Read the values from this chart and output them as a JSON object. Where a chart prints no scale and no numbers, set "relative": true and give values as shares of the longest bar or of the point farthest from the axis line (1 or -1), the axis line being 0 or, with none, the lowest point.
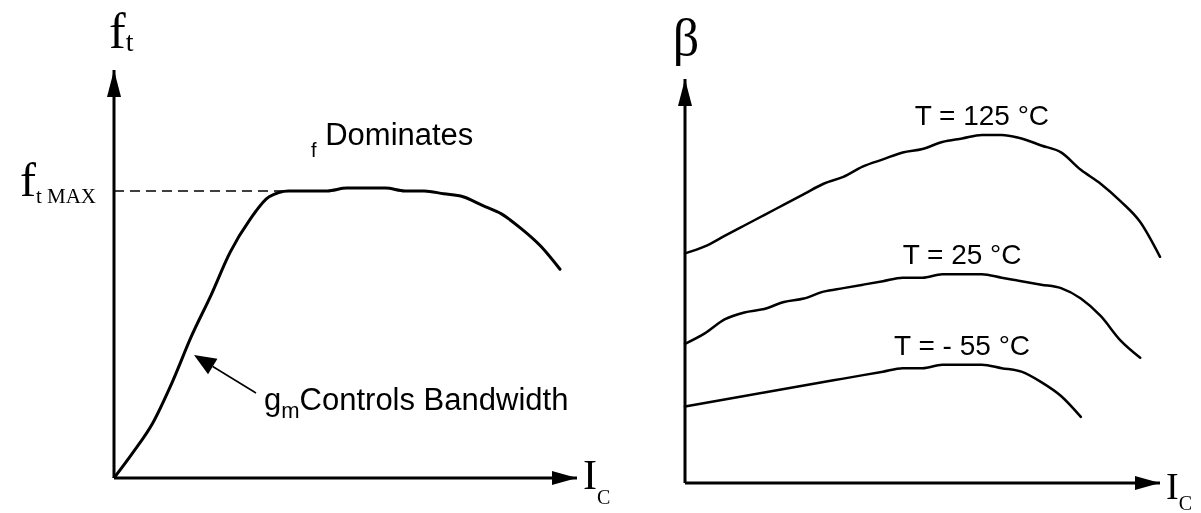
{
  "chart_data": [
    {
      "type": "line",
      "relative": true,
      "ylabel": "f$_{t}$",
      "xlabel": "I$_{C}$",
      "categories": [
        null,
        null,
        null,
        null,
        null,
        null,
        null,
        null,
        null,
        null,
        null,
        null,
        null,
        null,
        null,
        null,
        null,
        null,
        null,
        null,
        null,
        null,
        null,
        null
      ],
      "series": [
        {
          "color": "#000000",
          "values": [
            0,
            0.09,
            0.19,
            0.33,
            0.49,
            0.63,
            0.78,
            0.89,
            0.97,
            0.99,
            0.99,
            0.99,
            1,
            1,
            1,
            0.99,
            0.99,
            0.98,
            0.97,
            0.94,
            0.91,
            0.86,
            0.8,
            0.72
          ]
        }
      ],
      "ref_lines": [
        {
          "axis": "y",
          "value": 0.99,
          "label": "f$_{t MAX}$",
          "line_style": "dashed",
          "color": "#000000"
        }
      ],
      "annotations": [
        "$_{f}$ Dominates",
        "g$_{m}$Controls Bandwidth"
      ]
    },
    {
      "type": "line",
      "relative": true,
      "ylabel": "β",
      "xlabel": "I$_{C}$",
      "categories": [
        null,
        null,
        null,
        null,
        null,
        null,
        null,
        null,
        null,
        null,
        null,
        null,
        null,
        null,
        null,
        null,
        null,
        null,
        null,
        null,
        null,
        null,
        null,
        null,
        null
      ],
      "series": [
        {
          "name": "T = 125 °C",
          "color": "#000000",
          "values": [
            0.66,
            0.68,
            0.71,
            0.74,
            0.77,
            0.8,
            0.83,
            0.86,
            0.88,
            0.91,
            0.93,
            0.95,
            0.96,
            0.98,
            0.99,
            1,
            1,
            0.99,
            0.97,
            0.95,
            0.9,
            0.86,
            0.81,
            0.75,
            0.65
          ]
        },
        {
          "name": "T = 25 °C",
          "color": "#000000",
          "values": [
            0.4,
            0.43,
            0.47,
            0.49,
            0.5,
            0.52,
            0.53,
            0.55,
            0.56,
            0.57,
            0.58,
            0.59,
            0.59,
            0.6,
            0.6,
            0.6,
            0.59,
            0.58,
            0.57,
            0.56,
            0.53,
            0.48,
            0.41,
            0.36,
            null
          ]
        },
        {
          "name": "T = - 55 °C",
          "color": "#000000",
          "values": [
            0.22,
            0.23,
            0.24,
            0.25,
            0.26,
            0.27,
            0.28,
            0.29,
            0.3,
            0.31,
            0.32,
            0.33,
            0.33,
            0.34,
            0.34,
            0.34,
            0.33,
            0.32,
            0.29,
            0.25,
            0.19,
            null,
            null,
            null,
            null
          ]
        }
      ]
    }
  ]
}
